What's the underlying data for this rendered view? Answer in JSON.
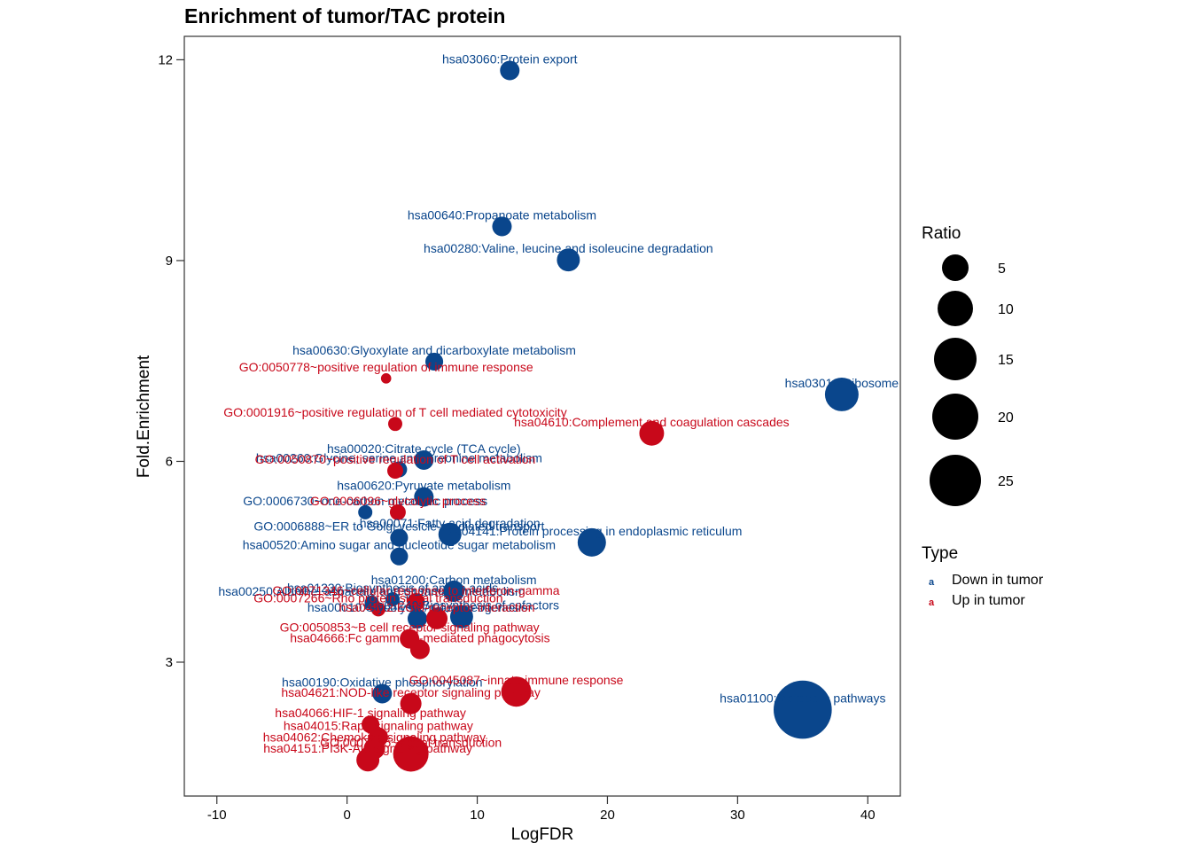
{
  "chart_data": {
    "type": "scatter",
    "title": "Enrichment of tumor/TAC protein",
    "xlabel": "LogFDR",
    "ylabel": "Fold.Enrichment",
    "xlim": [
      -12.5,
      42.5
    ],
    "ylim": [
      1.0,
      12.35
    ],
    "xticks": [
      -10,
      0,
      10,
      20,
      30,
      40
    ],
    "yticks": [
      3,
      6,
      9,
      12
    ],
    "grid": false,
    "colors": {
      "Down in tumor": "#0A468C",
      "Up in tumor": "#C8081A"
    },
    "size_legend": {
      "title": "Ratio",
      "values": [
        5,
        10,
        15,
        20,
        25
      ]
    },
    "color_legend": {
      "title": "Type",
      "entries": [
        "Down in tumor",
        "Up in tumor"
      ],
      "glyph": "a"
    },
    "legend_position": "right",
    "points": [
      {
        "label": "hsa03060:Protein export",
        "x": 12.5,
        "y": 11.84,
        "ratio": 3.6,
        "type": "Down in tumor"
      },
      {
        "label": "hsa00640:Propanoate metabolism",
        "x": 11.9,
        "y": 9.51,
        "ratio": 3.6,
        "type": "Down in tumor"
      },
      {
        "label": "hsa00280:Valine, leucine and isoleucine degradation",
        "x": 17.0,
        "y": 9.01,
        "ratio": 5,
        "type": "Down in tumor"
      },
      {
        "label": "hsa00630:Glyoxylate and dicarboxylate metabolism",
        "x": 6.7,
        "y": 7.49,
        "ratio": 3,
        "type": "Down in tumor"
      },
      {
        "label": "GO:0050778~positive regulation of immune response",
        "x": 3.0,
        "y": 7.24,
        "ratio": 1,
        "type": "Up in tumor"
      },
      {
        "label": "hsa03010:Ribosome",
        "x": 38.0,
        "y": 7.0,
        "ratio": 10.7,
        "type": "Down in tumor"
      },
      {
        "label": "GO:0001916~positive regulation of T cell mediated cytotoxicity",
        "x": 3.7,
        "y": 6.56,
        "ratio": 1.9,
        "type": "Up in tumor"
      },
      {
        "label": "hsa04610:Complement and coagulation cascades",
        "x": 23.4,
        "y": 6.42,
        "ratio": 5.8,
        "type": "Up in tumor"
      },
      {
        "label": "hsa00020:Citrate cycle (TCA cycle)",
        "x": 5.9,
        "y": 6.02,
        "ratio": 3.6,
        "type": "Down in tumor"
      },
      {
        "label": "hsa00260:Glycine, serine and threonine metabolism",
        "x": 4.0,
        "y": 5.88,
        "ratio": 2.4,
        "type": "Down in tumor"
      },
      {
        "label": "GO:0050870~positive regulation of T cell activation",
        "x": 3.7,
        "y": 5.86,
        "ratio": 2.4,
        "type": "Up in tumor"
      },
      {
        "label": "hsa00620:Pyruvate metabolism",
        "x": 5.9,
        "y": 5.47,
        "ratio": 3.6,
        "type": "Down in tumor"
      },
      {
        "label": "GO:0006730~one-carbon metabolic process",
        "x": 1.4,
        "y": 5.24,
        "ratio": 1.9,
        "type": "Down in tumor"
      },
      {
        "label": "GO:0006096~glycolytic process",
        "x": 3.9,
        "y": 5.24,
        "ratio": 2.4,
        "type": "Up in tumor"
      },
      {
        "label": "hsa00071:Fatty acid degradation",
        "x": 7.9,
        "y": 4.91,
        "ratio": 5,
        "type": "Down in tumor"
      },
      {
        "label": "GO:0006888~ER to Golgi vesicle-mediated transport",
        "x": 4.0,
        "y": 4.86,
        "ratio": 3,
        "type": "Down in tumor"
      },
      {
        "label": "hsa04141:Protein processing in endoplasmic reticulum",
        "x": 18.8,
        "y": 4.79,
        "ratio": 7.6,
        "type": "Down in tumor"
      },
      {
        "label": "hsa00520:Amino sugar and nucleotide sugar metabolism",
        "x": 4.0,
        "y": 4.58,
        "ratio": 3,
        "type": "Down in tumor"
      },
      {
        "label": "hsa01200:Carbon metabolism",
        "x": 8.2,
        "y": 4.06,
        "ratio": 4.3,
        "type": "Down in tumor"
      },
      {
        "label": "hsa01230:Biosynthesis of amino acids",
        "x": 3.5,
        "y": 3.94,
        "ratio": 1.9,
        "type": "Down in tumor"
      },
      {
        "label": "hsa00250:Alanine, aspartate and glutamate metabolism",
        "x": 1.9,
        "y": 3.89,
        "ratio": 1.9,
        "type": "Down in tumor"
      },
      {
        "label": "GO:0071346~cellular response to interferon-gamma",
        "x": 5.3,
        "y": 3.9,
        "ratio": 3,
        "type": "Up in tumor"
      },
      {
        "label": "GO:0007266~Rho protein signal transduction",
        "x": 2.4,
        "y": 3.79,
        "ratio": 1.9,
        "type": "Up in tumor"
      },
      {
        "label": "hsa01240:Biosynthesis of cofactors",
        "x": 8.8,
        "y": 3.68,
        "ratio": 5,
        "type": "Down in tumor"
      },
      {
        "label": "hsa00010:Glycolysis / Gluconeogenesis",
        "x": 5.4,
        "y": 3.65,
        "ratio": 3.6,
        "type": "Down in tumor"
      },
      {
        "label": "hsa04512:ECM-receptor interaction",
        "x": 6.9,
        "y": 3.65,
        "ratio": 4.3,
        "type": "Up in tumor"
      },
      {
        "label": "GO:0050853~B cell receptor signaling pathway",
        "x": 4.8,
        "y": 3.35,
        "ratio": 3.6,
        "type": "Up in tumor"
      },
      {
        "label": "hsa04666:Fc gamma R-mediated phagocytosis",
        "x": 5.6,
        "y": 3.19,
        "ratio": 3.6,
        "type": "Up in tumor"
      },
      {
        "label": "hsa00190:Oxidative phosphorylation",
        "x": 2.7,
        "y": 2.53,
        "ratio": 3.6,
        "type": "Down in tumor"
      },
      {
        "label": "GO:0045087~innate immune response",
        "x": 13.0,
        "y": 2.56,
        "ratio": 8.6,
        "type": "Up in tumor"
      },
      {
        "label": "hsa04621:NOD-like receptor signaling pathway",
        "x": 4.9,
        "y": 2.38,
        "ratio": 4.3,
        "type": "Up in tumor"
      },
      {
        "label": "hsa01100:Metabolic pathways",
        "x": 35.0,
        "y": 2.29,
        "ratio": 32,
        "type": "Down in tumor"
      },
      {
        "label": "hsa04066:HIF-1 signaling pathway",
        "x": 1.8,
        "y": 2.07,
        "ratio": 3,
        "type": "Up in tumor"
      },
      {
        "label": "hsa04015:Rap1 signaling pathway",
        "x": 2.4,
        "y": 1.88,
        "ratio": 3.6,
        "type": "Up in tumor"
      },
      {
        "label": "hsa04062:Chemokine signaling pathway",
        "x": 2.1,
        "y": 1.71,
        "ratio": 4.3,
        "type": "Up in tumor"
      },
      {
        "label": "GO:0007165~signal transduction",
        "x": 4.9,
        "y": 1.63,
        "ratio": 11.9,
        "type": "Up in tumor"
      },
      {
        "label": "hsa04151:PI3K-Akt signaling pathway",
        "x": 1.6,
        "y": 1.54,
        "ratio": 5,
        "type": "Up in tumor"
      }
    ]
  }
}
